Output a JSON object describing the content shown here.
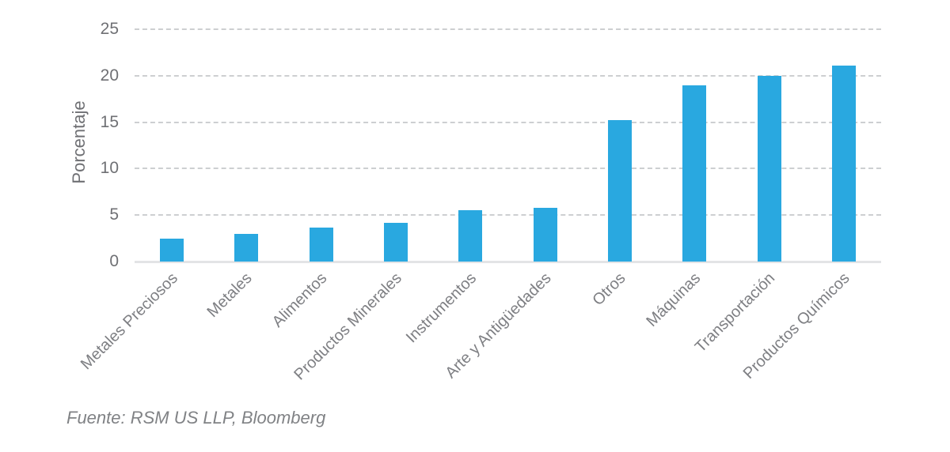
{
  "chart_data": {
    "type": "bar",
    "title": "",
    "xlabel": "",
    "ylabel": "Porcentaje",
    "categories": [
      "Metales Preciosos",
      "Metales",
      "Alimentos",
      "Productos Minerales",
      "Instrumentos",
      "Arte y Antigüedades",
      "Otros",
      "Máquinas",
      "Transportación",
      "Productos Químicos"
    ],
    "values": [
      2.5,
      3.0,
      3.7,
      4.2,
      5.5,
      5.8,
      15.2,
      19.0,
      20.0,
      21.1
    ],
    "ylim": [
      0,
      25
    ],
    "yticks": [
      0,
      5,
      10,
      15,
      20,
      25
    ],
    "grid": "horizontal-dashed",
    "legend": "none",
    "bar_color": "#29A8E0"
  },
  "source_note": "Fuente: RSM US LLP, Bloomberg",
  "colors": {
    "bar": "#29A8E0",
    "gridline": "#cdcfd1",
    "baseline": "#e3e4e6",
    "axis_text": "#6f7074",
    "category_text": "#7e7f83",
    "source_text": "#808285",
    "background": "#ffffff"
  }
}
